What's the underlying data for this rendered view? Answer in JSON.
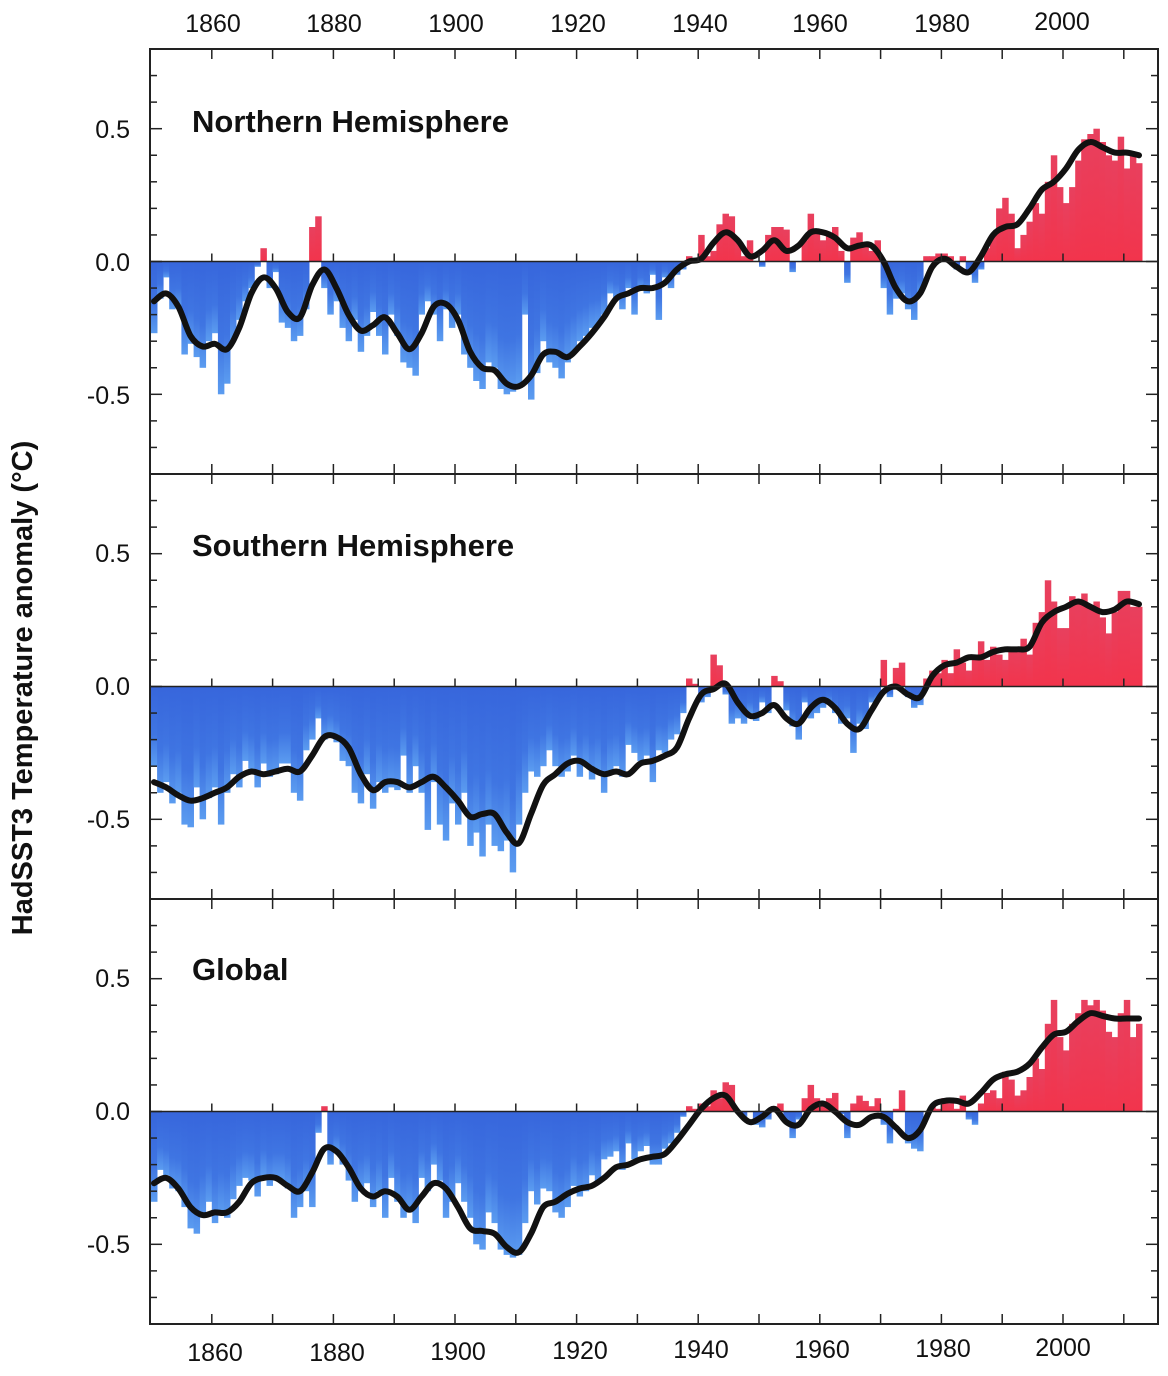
{
  "chart_data": {
    "type": "bar",
    "ylabel": "HadSST3 Temperature anomaly (°C)",
    "xlim": [
      1850,
      2015
    ],
    "ylim": [
      -0.8,
      0.8
    ],
    "x_tick_labels": [
      "1860",
      "1880",
      "1900",
      "1920",
      "1940",
      "1960",
      "1980",
      "2000"
    ],
    "y_tick_labels": [
      "0.5",
      "0.0",
      "-0.5"
    ],
    "y_tick_values": [
      0.5,
      0.0,
      -0.5
    ],
    "grid": false,
    "colors": {
      "positive": "#ee2e48",
      "negative": "#3b6ee0",
      "negative_light": "#5b9cf0",
      "smooth": "#111111"
    },
    "annual_start_year": 1850,
    "smooth_start_year": 1850,
    "smooth_step_years": 2,
    "panels": [
      {
        "title": "Northern Hemisphere",
        "annual": [
          -0.27,
          -0.14,
          -0.06,
          -0.18,
          -0.17,
          -0.35,
          -0.31,
          -0.36,
          -0.4,
          -0.3,
          -0.27,
          -0.5,
          -0.46,
          -0.3,
          -0.22,
          -0.15,
          -0.1,
          -0.02,
          0.05,
          -0.1,
          -0.04,
          -0.23,
          -0.25,
          -0.3,
          -0.28,
          -0.18,
          0.13,
          0.17,
          -0.1,
          -0.2,
          -0.15,
          -0.25,
          -0.3,
          -0.22,
          -0.34,
          -0.28,
          -0.19,
          -0.28,
          -0.35,
          -0.2,
          -0.28,
          -0.38,
          -0.4,
          -0.43,
          -0.2,
          -0.15,
          -0.2,
          -0.3,
          -0.18,
          -0.25,
          -0.2,
          -0.35,
          -0.4,
          -0.45,
          -0.48,
          -0.38,
          -0.4,
          -0.48,
          -0.5,
          -0.49,
          -0.46,
          -0.2,
          -0.52,
          -0.42,
          -0.3,
          -0.38,
          -0.4,
          -0.44,
          -0.38,
          -0.34,
          -0.3,
          -0.28,
          -0.25,
          -0.24,
          -0.2,
          -0.12,
          -0.14,
          -0.18,
          -0.1,
          -0.2,
          -0.1,
          -0.12,
          -0.05,
          -0.22,
          -0.06,
          -0.1,
          -0.05,
          -0.03,
          0.02,
          0.0,
          0.1,
          0.02,
          0.04,
          0.14,
          0.18,
          0.17,
          0.08,
          0.02,
          0.08,
          0.0,
          -0.02,
          0.1,
          0.13,
          0.13,
          0.12,
          -0.04,
          0.0,
          0.08,
          0.18,
          0.12,
          0.08,
          0.1,
          0.13,
          0.04,
          -0.08,
          0.09,
          0.11,
          0.06,
          0.04,
          0.08,
          -0.1,
          -0.2,
          -0.14,
          -0.12,
          -0.18,
          -0.22,
          -0.12,
          0.02,
          0.02,
          0.03,
          0.03,
          0.02,
          -0.03,
          0.02,
          -0.05,
          -0.08,
          -0.03,
          0.05,
          0.1,
          0.2,
          0.24,
          0.18,
          0.05,
          0.1,
          0.15,
          0.22,
          0.18,
          0.3,
          0.4,
          0.28,
          0.22,
          0.28,
          0.38,
          0.46,
          0.48,
          0.5,
          0.45,
          0.4,
          0.38,
          0.47,
          0.35,
          0.4,
          0.37
        ],
        "smooth": [
          -0.15,
          -0.12,
          -0.17,
          -0.28,
          -0.32,
          -0.31,
          -0.33,
          -0.25,
          -0.12,
          -0.06,
          -0.1,
          -0.19,
          -0.21,
          -0.09,
          -0.03,
          -0.1,
          -0.2,
          -0.26,
          -0.24,
          -0.21,
          -0.27,
          -0.33,
          -0.27,
          -0.17,
          -0.16,
          -0.22,
          -0.34,
          -0.4,
          -0.41,
          -0.46,
          -0.47,
          -0.43,
          -0.35,
          -0.34,
          -0.36,
          -0.32,
          -0.27,
          -0.21,
          -0.14,
          -0.12,
          -0.1,
          -0.1,
          -0.08,
          -0.03,
          0.0,
          0.01,
          0.07,
          0.11,
          0.08,
          0.02,
          0.04,
          0.08,
          0.04,
          0.06,
          0.11,
          0.11,
          0.09,
          0.05,
          0.06,
          0.06,
          0.0,
          -0.1,
          -0.15,
          -0.12,
          -0.02,
          0.01,
          -0.02,
          -0.04,
          0.02,
          0.1,
          0.13,
          0.14,
          0.2,
          0.27,
          0.3,
          0.35,
          0.42,
          0.45,
          0.43,
          0.41,
          0.41,
          0.4
        ]
      },
      {
        "title": "Southern Hemisphere",
        "annual": [
          -0.3,
          -0.4,
          -0.36,
          -0.44,
          -0.4,
          -0.52,
          -0.53,
          -0.38,
          -0.5,
          -0.42,
          -0.38,
          -0.52,
          -0.4,
          -0.33,
          -0.38,
          -0.28,
          -0.31,
          -0.38,
          -0.29,
          -0.34,
          -0.33,
          -0.29,
          -0.29,
          -0.4,
          -0.43,
          -0.24,
          -0.2,
          -0.12,
          -0.2,
          -0.18,
          -0.21,
          -0.28,
          -0.3,
          -0.4,
          -0.44,
          -0.33,
          -0.46,
          -0.36,
          -0.4,
          -0.38,
          -0.39,
          -0.26,
          -0.4,
          -0.3,
          -0.4,
          -0.54,
          -0.36,
          -0.52,
          -0.58,
          -0.44,
          -0.52,
          -0.4,
          -0.6,
          -0.55,
          -0.64,
          -0.52,
          -0.6,
          -0.62,
          -0.58,
          -0.7,
          -0.52,
          -0.4,
          -0.32,
          -0.34,
          -0.3,
          -0.24,
          -0.3,
          -0.34,
          -0.32,
          -0.26,
          -0.34,
          -0.3,
          -0.35,
          -0.32,
          -0.4,
          -0.32,
          -0.3,
          -0.34,
          -0.22,
          -0.25,
          -0.28,
          -0.26,
          -0.36,
          -0.24,
          -0.25,
          -0.2,
          -0.18,
          -0.1,
          0.03,
          0.01,
          -0.06,
          -0.04,
          0.12,
          0.08,
          -0.03,
          -0.14,
          -0.12,
          -0.14,
          -0.1,
          -0.13,
          -0.06,
          -0.1,
          0.04,
          0.02,
          -0.09,
          -0.15,
          -0.2,
          -0.06,
          -0.12,
          -0.1,
          -0.08,
          -0.06,
          -0.1,
          -0.14,
          -0.12,
          -0.25,
          -0.14,
          -0.16,
          -0.06,
          -0.05,
          0.1,
          -0.04,
          0.07,
          0.09,
          -0.04,
          -0.08,
          -0.07,
          0.03,
          0.06,
          0.05,
          0.1,
          0.05,
          0.14,
          0.09,
          0.06,
          0.12,
          0.17,
          0.1,
          0.15,
          0.12,
          0.1,
          0.15,
          0.14,
          0.18,
          0.12,
          0.24,
          0.28,
          0.4,
          0.32,
          0.22,
          0.22,
          0.34,
          0.32,
          0.35,
          0.3,
          0.32,
          0.26,
          0.2,
          0.28,
          0.36,
          0.36,
          0.3,
          0.3
        ],
        "smooth": [
          -0.36,
          -0.38,
          -0.41,
          -0.43,
          -0.42,
          -0.4,
          -0.38,
          -0.34,
          -0.32,
          -0.33,
          -0.32,
          -0.31,
          -0.32,
          -0.26,
          -0.19,
          -0.19,
          -0.23,
          -0.33,
          -0.39,
          -0.36,
          -0.36,
          -0.38,
          -0.36,
          -0.34,
          -0.38,
          -0.43,
          -0.49,
          -0.48,
          -0.48,
          -0.55,
          -0.59,
          -0.48,
          -0.37,
          -0.33,
          -0.29,
          -0.28,
          -0.31,
          -0.33,
          -0.32,
          -0.33,
          -0.29,
          -0.28,
          -0.26,
          -0.23,
          -0.12,
          -0.03,
          -0.01,
          0.01,
          -0.06,
          -0.11,
          -0.1,
          -0.07,
          -0.12,
          -0.14,
          -0.08,
          -0.05,
          -0.08,
          -0.14,
          -0.16,
          -0.09,
          -0.02,
          0.0,
          -0.03,
          -0.04,
          0.04,
          0.08,
          0.09,
          0.11,
          0.11,
          0.13,
          0.14,
          0.14,
          0.15,
          0.24,
          0.28,
          0.3,
          0.32,
          0.3,
          0.28,
          0.29,
          0.32,
          0.31
        ]
      },
      {
        "title": "Global",
        "annual": [
          -0.34,
          -0.22,
          -0.24,
          -0.29,
          -0.3,
          -0.36,
          -0.44,
          -0.46,
          -0.4,
          -0.34,
          -0.42,
          -0.38,
          -0.4,
          -0.33,
          -0.28,
          -0.25,
          -0.26,
          -0.32,
          -0.24,
          -0.28,
          -0.26,
          -0.26,
          -0.29,
          -0.4,
          -0.36,
          -0.3,
          -0.36,
          -0.08,
          0.02,
          -0.2,
          -0.15,
          -0.2,
          -0.26,
          -0.34,
          -0.3,
          -0.27,
          -0.36,
          -0.3,
          -0.4,
          -0.25,
          -0.34,
          -0.4,
          -0.38,
          -0.42,
          -0.25,
          -0.3,
          -0.2,
          -0.26,
          -0.4,
          -0.34,
          -0.27,
          -0.34,
          -0.4,
          -0.5,
          -0.52,
          -0.38,
          -0.42,
          -0.52,
          -0.54,
          -0.55,
          -0.54,
          -0.42,
          -0.3,
          -0.35,
          -0.29,
          -0.3,
          -0.38,
          -0.4,
          -0.36,
          -0.28,
          -0.32,
          -0.3,
          -0.24,
          -0.27,
          -0.18,
          -0.17,
          -0.15,
          -0.22,
          -0.12,
          -0.18,
          -0.15,
          -0.13,
          -0.2,
          -0.2,
          -0.14,
          -0.12,
          -0.08,
          -0.02,
          0.02,
          0.01,
          0.03,
          0.02,
          0.08,
          0.05,
          0.11,
          0.1,
          0.0,
          -0.02,
          0.0,
          -0.05,
          -0.06,
          -0.03,
          0.02,
          0.03,
          -0.04,
          -0.1,
          -0.03,
          0.05,
          0.1,
          0.05,
          0.02,
          0.05,
          0.07,
          -0.01,
          -0.1,
          0.03,
          0.06,
          0.04,
          0.02,
          0.05,
          -0.05,
          -0.12,
          0.01,
          0.08,
          -0.12,
          -0.14,
          -0.15,
          0.0,
          0.02,
          0.01,
          0.05,
          0.03,
          0.01,
          0.06,
          -0.03,
          -0.05,
          0.03,
          0.07,
          0.08,
          0.05,
          0.15,
          0.12,
          0.06,
          0.08,
          0.13,
          0.2,
          0.16,
          0.33,
          0.42,
          0.28,
          0.23,
          0.33,
          0.37,
          0.42,
          0.4,
          0.42,
          0.38,
          0.3,
          0.28,
          0.37,
          0.42,
          0.28,
          0.33
        ],
        "smooth": [
          -0.27,
          -0.25,
          -0.29,
          -0.36,
          -0.39,
          -0.38,
          -0.38,
          -0.34,
          -0.27,
          -0.25,
          -0.25,
          -0.28,
          -0.3,
          -0.23,
          -0.14,
          -0.15,
          -0.21,
          -0.29,
          -0.32,
          -0.3,
          -0.32,
          -0.37,
          -0.32,
          -0.27,
          -0.29,
          -0.36,
          -0.44,
          -0.45,
          -0.46,
          -0.51,
          -0.53,
          -0.46,
          -0.36,
          -0.34,
          -0.31,
          -0.29,
          -0.28,
          -0.25,
          -0.21,
          -0.2,
          -0.18,
          -0.17,
          -0.16,
          -0.11,
          -0.05,
          0.01,
          0.05,
          0.06,
          0.0,
          -0.04,
          -0.02,
          0.01,
          -0.04,
          -0.05,
          0.01,
          0.03,
          0.0,
          -0.04,
          -0.05,
          -0.02,
          -0.02,
          -0.06,
          -0.1,
          -0.07,
          0.02,
          0.04,
          0.04,
          0.03,
          0.07,
          0.12,
          0.14,
          0.15,
          0.18,
          0.24,
          0.29,
          0.3,
          0.34,
          0.37,
          0.36,
          0.35,
          0.35,
          0.35
        ]
      }
    ]
  }
}
